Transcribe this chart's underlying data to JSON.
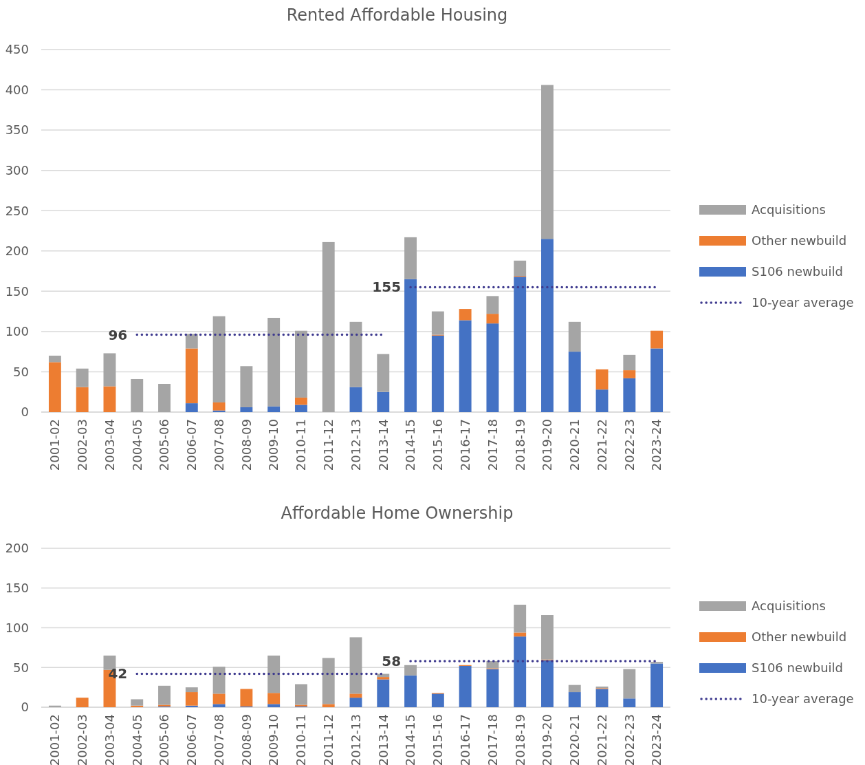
{
  "chart_data": [
    {
      "type": "bar",
      "title": "Rented Affordable Housing",
      "stacked": true,
      "grid": "y",
      "legend": "right",
      "categories": [
        "2001-02",
        "2002-03",
        "2003-04",
        "2004-05",
        "2005-06",
        "2006-07",
        "2007-08",
        "2008-09",
        "2009-10",
        "2010-11",
        "2011-12",
        "2012-13",
        "2013-14",
        "2014-15",
        "2015-16",
        "2016-17",
        "2017-18",
        "2018-19",
        "2019-20",
        "2020-21",
        "2021-22",
        "2022-23",
        "2023-24"
      ],
      "ylim": [
        0,
        450
      ],
      "yticks": [
        0,
        50,
        100,
        150,
        200,
        250,
        300,
        350,
        400,
        450
      ],
      "series": [
        {
          "name": "S106 newbuild",
          "color": "#4472c4",
          "values": [
            0,
            0,
            0,
            0,
            0,
            11,
            2,
            6,
            7,
            9,
            0,
            31,
            25,
            165,
            95,
            114,
            110,
            168,
            215,
            75,
            28,
            42,
            79
          ]
        },
        {
          "name": "Other newbuild",
          "color": "#ed7d31",
          "values": [
            62,
            31,
            32,
            0,
            0,
            68,
            10,
            0,
            0,
            9,
            0,
            0,
            0,
            0,
            1,
            14,
            12,
            1,
            0,
            0,
            25,
            10,
            22
          ]
        },
        {
          "name": "Acquisitions",
          "color": "#a5a5a5",
          "values": [
            8,
            23,
            41,
            41,
            35,
            18,
            107,
            51,
            110,
            83,
            211,
            81,
            47,
            52,
            29,
            0,
            22,
            19,
            191,
            37,
            0,
            19,
            0
          ]
        },
        {
          "name": "10-year average",
          "type": "line",
          "color": "#3f3b8f",
          "line_style": "dotted",
          "marker": "none",
          "values": [
            null,
            null,
            null,
            96,
            96,
            96,
            96,
            96,
            96,
            96,
            96,
            96,
            96,
            null,
            null,
            null,
            null,
            null,
            null,
            null,
            null,
            null,
            null
          ]
        },
        {
          "type": "line",
          "color": "#3f3b8f",
          "line_style": "dotted",
          "marker": "none",
          "values": [
            null,
            null,
            null,
            null,
            null,
            null,
            null,
            null,
            null,
            null,
            null,
            null,
            null,
            155,
            155,
            155,
            155,
            155,
            155,
            155,
            155,
            155,
            155
          ]
        }
      ],
      "annotations": [
        {
          "text": "96",
          "x": "2004-05",
          "y": 96
        },
        {
          "text": "155",
          "x": "2014-15",
          "y": 155
        }
      ]
    },
    {
      "type": "bar",
      "title": "Affordable Home Ownership",
      "stacked": true,
      "grid": "y",
      "legend": "right",
      "categories": [
        "2001-02",
        "2002-03",
        "2003-04",
        "2004-05",
        "2005-06",
        "2006-07",
        "2007-08",
        "2008-09",
        "2009-10",
        "2010-11",
        "2011-12",
        "2012-13",
        "2013-14",
        "2014-15",
        "2015-16",
        "2016-17",
        "2017-18",
        "2018-19",
        "2019-20",
        "2020-21",
        "2021-22",
        "2022-23",
        "2023-24"
      ],
      "ylim": [
        0,
        200
      ],
      "yticks": [
        0,
        50,
        100,
        150,
        200
      ],
      "series": [
        {
          "name": "S106 newbuild",
          "color": "#4472c4",
          "values": [
            0,
            0,
            0,
            0,
            1,
            2,
            4,
            1,
            4,
            1,
            0,
            12,
            35,
            40,
            17,
            52,
            48,
            89,
            59,
            19,
            23,
            11,
            55
          ]
        },
        {
          "name": "Other newbuild",
          "color": "#ed7d31",
          "values": [
            0,
            12,
            47,
            2,
            2,
            17,
            13,
            22,
            14,
            2,
            4,
            5,
            3,
            0,
            1,
            1,
            1,
            5,
            1,
            0,
            1,
            0,
            0
          ]
        },
        {
          "name": "Acquisitions",
          "color": "#a5a5a5",
          "values": [
            2,
            0,
            18,
            8,
            24,
            6,
            34,
            0,
            47,
            26,
            58,
            71,
            4,
            13,
            0,
            0,
            9,
            35,
            56,
            9,
            2,
            37,
            2
          ]
        },
        {
          "name": "10-year average",
          "type": "line",
          "color": "#3f3b8f",
          "line_style": "dotted",
          "marker": "none",
          "values": [
            null,
            null,
            null,
            42,
            42,
            42,
            42,
            42,
            42,
            42,
            42,
            42,
            42,
            null,
            null,
            null,
            null,
            null,
            null,
            null,
            null,
            null,
            null
          ]
        },
        {
          "type": "line",
          "color": "#3f3b8f",
          "line_style": "dotted",
          "marker": "none",
          "values": [
            null,
            null,
            null,
            null,
            null,
            null,
            null,
            null,
            null,
            null,
            null,
            null,
            null,
            58,
            58,
            58,
            58,
            58,
            58,
            58,
            58,
            58,
            58
          ]
        }
      ],
      "annotations": [
        {
          "text": "42",
          "x": "2004-05",
          "y": 42
        },
        {
          "text": "58",
          "x": "2014-15",
          "y": 58
        }
      ]
    }
  ]
}
